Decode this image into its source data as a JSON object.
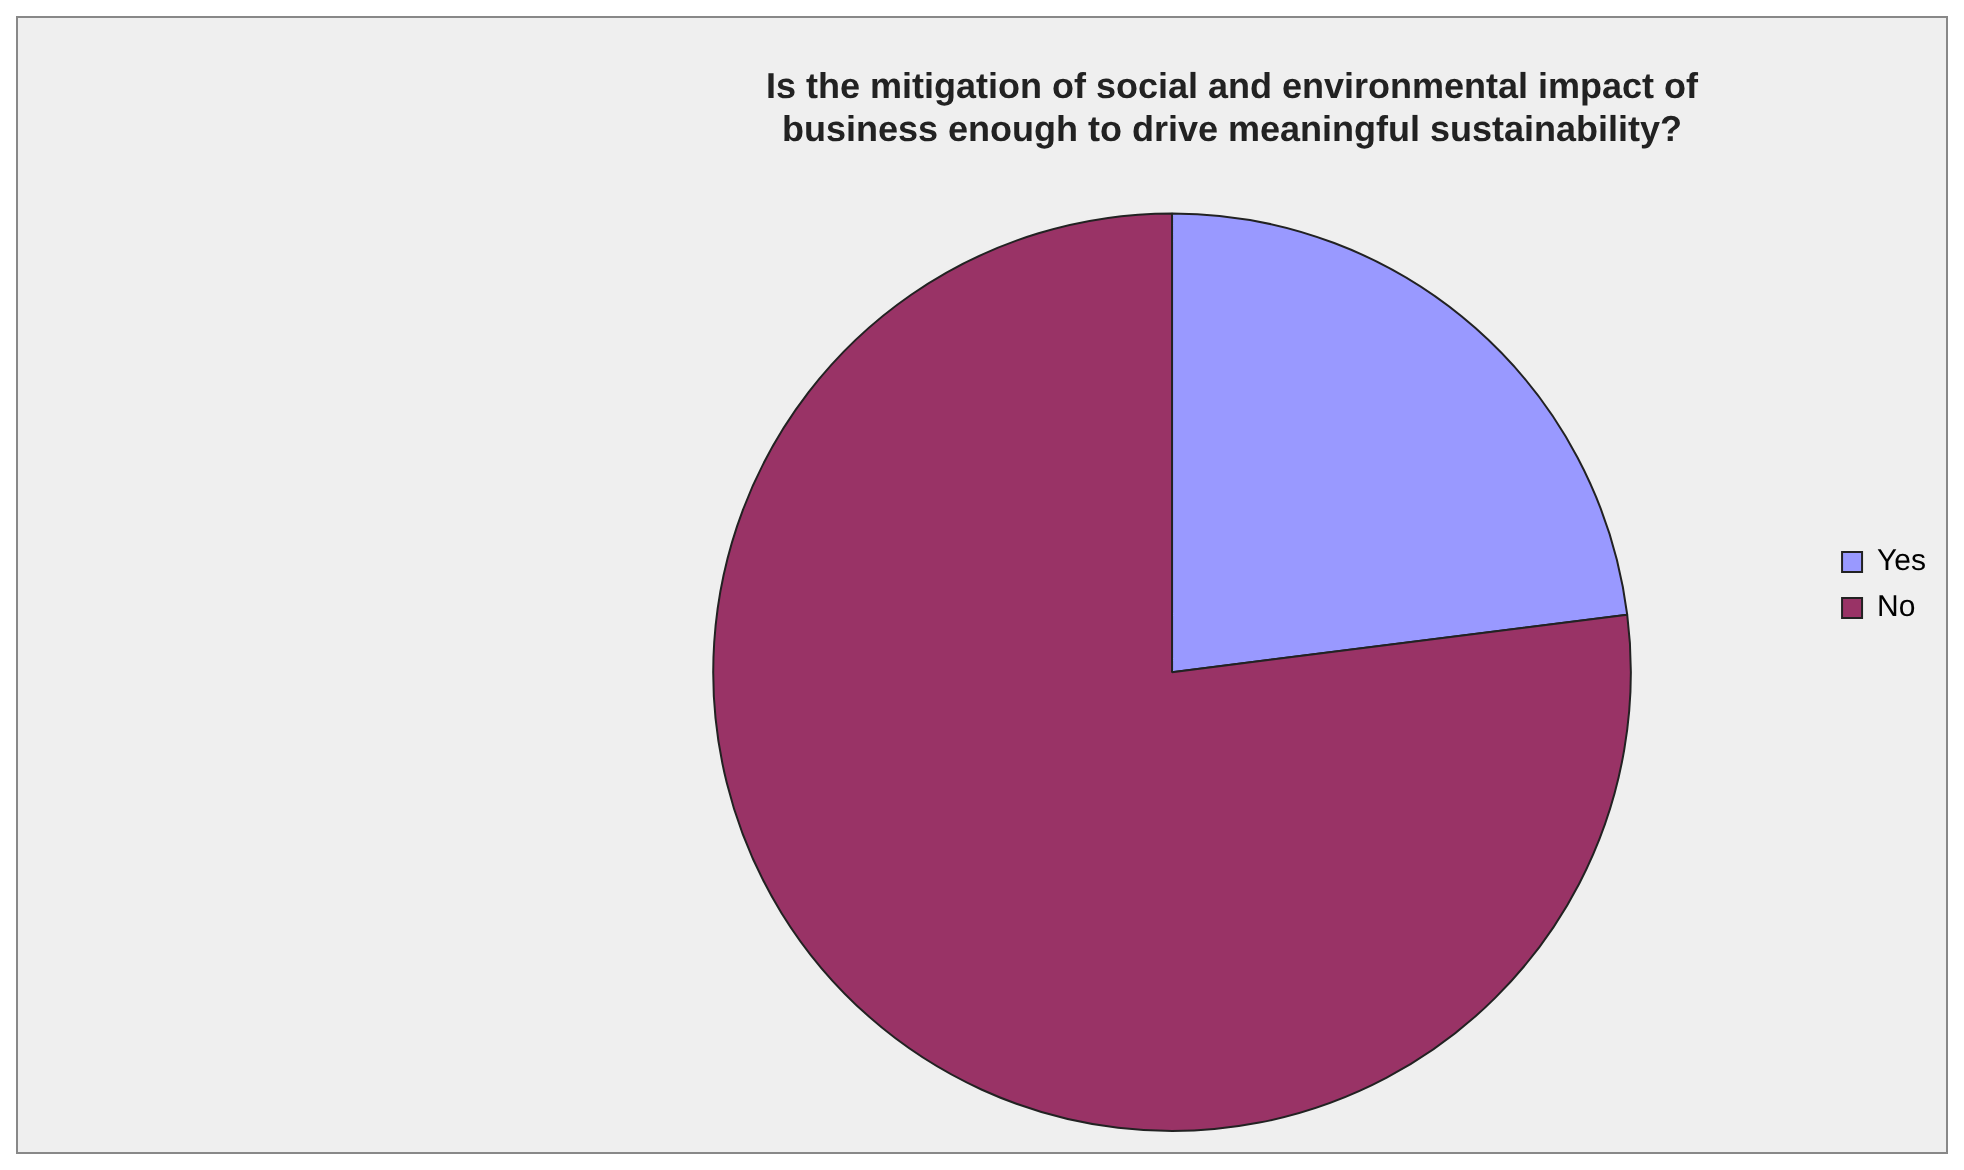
{
  "chart_data": {
    "type": "pie",
    "title": "Is the mitigation of social and environmental impact of business enough to drive meaningful sustainability?",
    "categories": [
      "Yes",
      "No"
    ],
    "values": [
      23,
      77
    ],
    "colors": [
      "#9999ff",
      "#993366"
    ],
    "legend": "right"
  }
}
